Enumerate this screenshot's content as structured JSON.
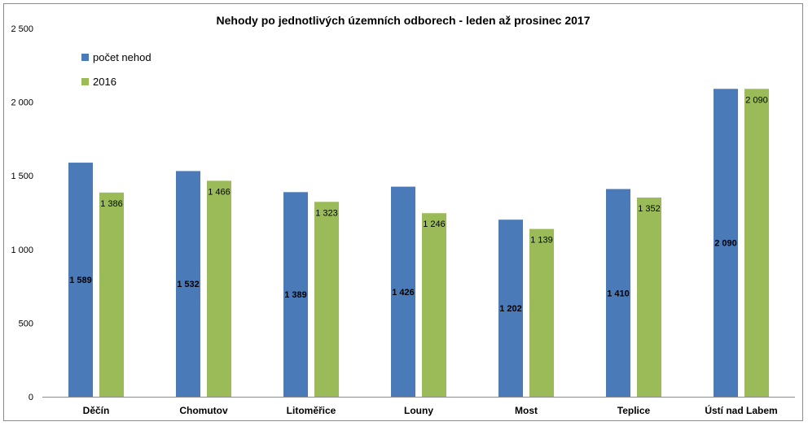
{
  "chart_data": {
    "type": "bar",
    "title": "Nehody po jednotlivých územních odborech - leden až  prosinec 2017",
    "categories": [
      "Děčín",
      "Chomutov",
      "Litoměřice",
      "Louny",
      "Most",
      "Teplice",
      "Ústí nad Labem"
    ],
    "series": [
      {
        "name": "počet nehod",
        "color": "#4a7ab7",
        "values": [
          1589,
          1532,
          1389,
          1426,
          1202,
          1410,
          2090
        ],
        "labels": [
          "1 589",
          "1 532",
          "1 389",
          "1 426",
          "1 202",
          "1 410",
          "2 090"
        ]
      },
      {
        "name": "2016",
        "color": "#9bbb59",
        "values": [
          1386,
          1466,
          1323,
          1246,
          1139,
          1352,
          2090
        ],
        "labels": [
          "1 386",
          "1 466",
          "1 323",
          "1 246",
          "1 139",
          "1 352",
          "2 090"
        ]
      }
    ],
    "ylim": [
      0,
      2500
    ],
    "yticks": [
      0,
      500,
      1000,
      1500,
      2000,
      2500
    ],
    "ytick_labels": [
      "0",
      "500",
      "1 000",
      "1 500",
      "2 000",
      "2 500"
    ],
    "xlabel": "",
    "ylabel": "",
    "grid": false,
    "legend": "top-left"
  }
}
